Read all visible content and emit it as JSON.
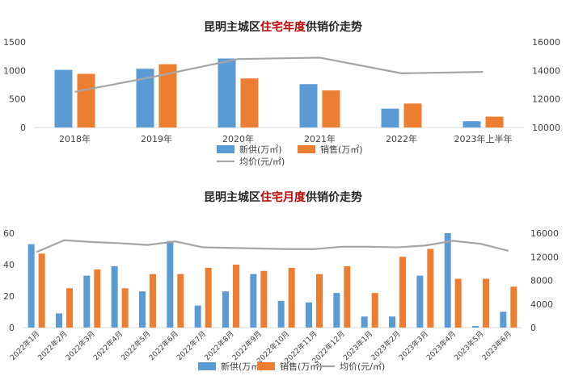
{
  "colors": {
    "supply": "#5b9bd5",
    "sales": "#ed7d31",
    "price": "#a5a5a5",
    "title_dark": "#262626",
    "title_accent": "#c00000",
    "tick": "#404040"
  },
  "chart_data": [
    {
      "type": "bar",
      "title_prefix": "昆明主城区",
      "title_highlight": "住宅年度",
      "title_suffix": "供销价走势",
      "categories": [
        "2018年",
        "2019年",
        "2020年",
        "2021年",
        "2022年",
        "2023年上半年"
      ],
      "series": [
        {
          "name": "新供(万㎡)",
          "type": "bar",
          "axis": "left",
          "values": [
            1010,
            1030,
            1210,
            760,
            330,
            110
          ]
        },
        {
          "name": "销售(万㎡)",
          "type": "bar",
          "axis": "left",
          "values": [
            940,
            1110,
            860,
            650,
            420,
            190
          ]
        },
        {
          "name": "均价(元/㎡)",
          "type": "line",
          "axis": "right",
          "values": [
            12500,
            13600,
            14800,
            14900,
            13800,
            13900
          ]
        }
      ],
      "ylim": [
        0,
        1500
      ],
      "yticks": [
        0,
        500,
        1000,
        1500
      ],
      "y2lim": [
        10000,
        16000
      ],
      "y2ticks": [
        10000,
        12000,
        14000,
        16000
      ],
      "legend_position": "bottom",
      "grid": false
    },
    {
      "type": "bar",
      "title_prefix": "昆明主城区",
      "title_highlight": "住宅月度",
      "title_suffix": "供销价走势",
      "categories": [
        "2022年1月",
        "2022年2月",
        "2022年3月",
        "2022年4月",
        "2022年5月",
        "2022年6月",
        "2022年7月",
        "2022年8月",
        "2022年9月",
        "2022年10月",
        "2022年11月",
        "2022年12月",
        "2023年1月",
        "2023年2月",
        "2023年3月",
        "2023年4月",
        "2023年5月",
        "2023年6月"
      ],
      "series": [
        {
          "name": "新供(万㎡)",
          "type": "bar",
          "axis": "left",
          "values": [
            53,
            9,
            33,
            39,
            23,
            55,
            14,
            23,
            34,
            17,
            16,
            22,
            7,
            7,
            33,
            60,
            1,
            10
          ]
        },
        {
          "name": "销售(万㎡)",
          "type": "bar",
          "axis": "left",
          "values": [
            47,
            25,
            37,
            25,
            34,
            34,
            38,
            40,
            36,
            38,
            34,
            39,
            22,
            45,
            50,
            31,
            31,
            26
          ]
        },
        {
          "name": "均价(元/㎡)",
          "type": "line",
          "axis": "right",
          "values": [
            12800,
            14800,
            14500,
            14300,
            14000,
            14600,
            13600,
            13500,
            13400,
            13300,
            13300,
            13700,
            13700,
            13600,
            13900,
            14700,
            14200,
            13000
          ]
        }
      ],
      "ylim": [
        0,
        60
      ],
      "yticks": [
        0,
        20,
        40,
        60
      ],
      "y2lim": [
        0,
        16000
      ],
      "y2ticks": [
        0,
        4000,
        8000,
        12000,
        16000
      ],
      "legend_position": "bottom",
      "grid": false
    }
  ]
}
